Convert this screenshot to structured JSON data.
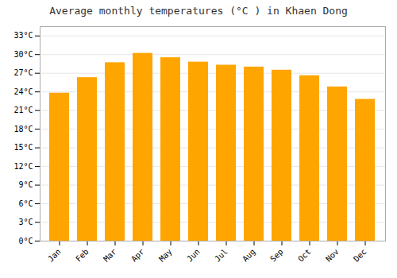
{
  "chart_data": {
    "type": "bar",
    "title": "Average monthly temperatures (°C ) in Khaen Dong",
    "categories": [
      "Jan",
      "Feb",
      "Mar",
      "Apr",
      "May",
      "Jun",
      "Jul",
      "Aug",
      "Sep",
      "Oct",
      "Nov",
      "Dec"
    ],
    "values": [
      23.8,
      26.3,
      28.7,
      30.2,
      29.5,
      28.8,
      28.3,
      28.0,
      27.5,
      26.6,
      24.8,
      22.8
    ],
    "color": "#FFA500",
    "ylim": [
      0,
      34.5
    ],
    "yticks": [
      {
        "value": 0,
        "label": "0°C"
      },
      {
        "value": 3,
        "label": "3°C"
      },
      {
        "value": 6,
        "label": "6°C"
      },
      {
        "value": 9,
        "label": "9°C"
      },
      {
        "value": 12,
        "label": "12°C"
      },
      {
        "value": 15,
        "label": "15°C"
      },
      {
        "value": 18,
        "label": "18°C"
      },
      {
        "value": 21,
        "label": "21°C"
      },
      {
        "value": 24,
        "label": "24°C"
      },
      {
        "value": 27,
        "label": "27°C"
      },
      {
        "value": 30,
        "label": "30°C"
      },
      {
        "value": 33,
        "label": "33°C"
      }
    ],
    "grid": true
  }
}
